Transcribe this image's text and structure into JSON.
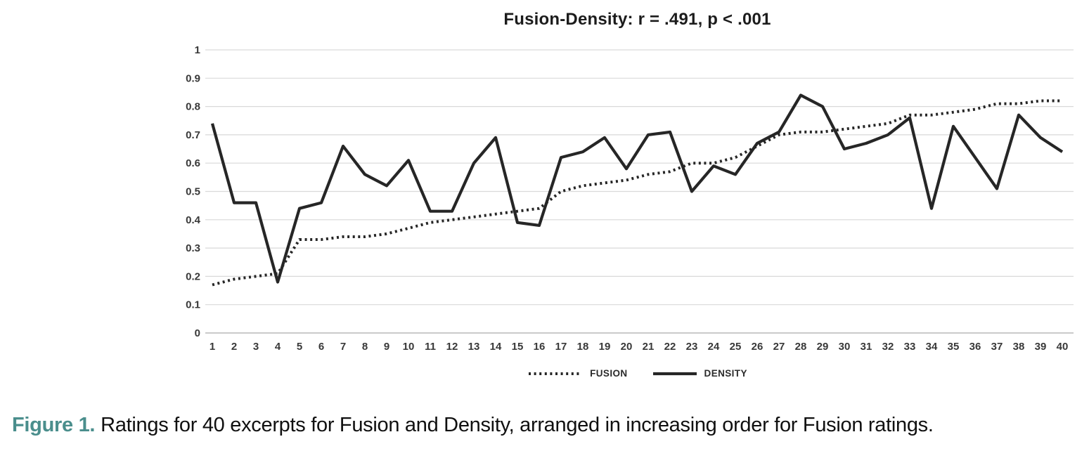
{
  "figure": {
    "caption_label": "Figure 1.",
    "caption_text": "Ratings for 40 excerpts for Fusion and Density, arranged in increasing order for Fusion ratings.",
    "caption_label_color": "#4a8e8c"
  },
  "chart_data": {
    "type": "line",
    "title": "Fusion-Density:  r = .491, p < .001",
    "stats": {
      "r": ".491",
      "p": "< .001"
    },
    "x": [
      1,
      2,
      3,
      4,
      5,
      6,
      7,
      8,
      9,
      10,
      11,
      12,
      13,
      14,
      15,
      16,
      17,
      18,
      19,
      20,
      21,
      22,
      23,
      24,
      25,
      26,
      27,
      28,
      29,
      30,
      31,
      32,
      33,
      34,
      35,
      36,
      37,
      38,
      39,
      40
    ],
    "series": [
      {
        "name": "FUSION",
        "style": "dotted",
        "values": [
          0.17,
          0.19,
          0.2,
          0.21,
          0.33,
          0.33,
          0.34,
          0.34,
          0.35,
          0.37,
          0.39,
          0.4,
          0.41,
          0.42,
          0.43,
          0.44,
          0.5,
          0.52,
          0.53,
          0.54,
          0.56,
          0.57,
          0.6,
          0.6,
          0.62,
          0.66,
          0.7,
          0.71,
          0.71,
          0.72,
          0.73,
          0.74,
          0.77,
          0.77,
          0.78,
          0.79,
          0.81,
          0.81,
          0.82,
          0.82
        ]
      },
      {
        "name": "DENSITY",
        "style": "solid",
        "values": [
          0.74,
          0.46,
          0.46,
          0.18,
          0.44,
          0.46,
          0.66,
          0.56,
          0.52,
          0.61,
          0.43,
          0.43,
          0.6,
          0.69,
          0.39,
          0.38,
          0.62,
          0.64,
          0.69,
          0.58,
          0.7,
          0.71,
          0.5,
          0.59,
          0.56,
          0.67,
          0.71,
          0.84,
          0.8,
          0.65,
          0.67,
          0.7,
          0.76,
          0.44,
          0.73,
          0.62,
          0.51,
          0.77,
          0.69,
          0.64
        ]
      }
    ],
    "xlabel": "",
    "ylabel": "",
    "ylim": [
      0,
      1
    ],
    "ytick_labels": [
      "0",
      "0.1",
      "0.2",
      "0.3",
      "0.4",
      "0.5",
      "0.6",
      "0.7",
      "0.8",
      "0.9",
      "1"
    ],
    "grid": "horizontal",
    "legend_position": "bottom",
    "line_color": "#262626",
    "grid_color": "#d9d9d9"
  }
}
